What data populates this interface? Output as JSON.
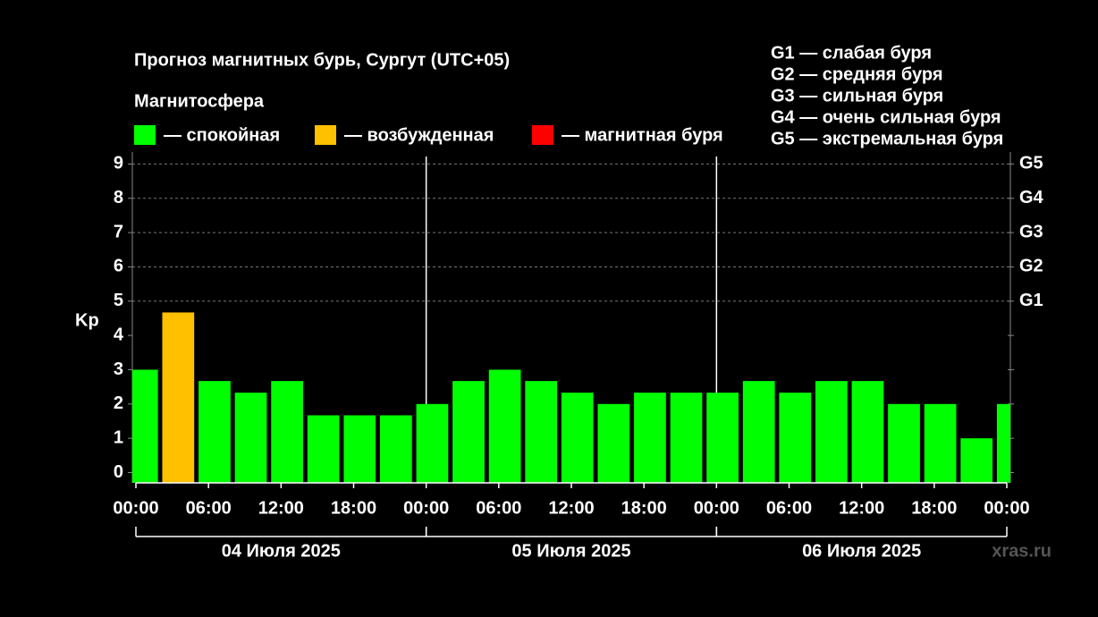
{
  "chart_data": {
    "type": "bar",
    "title": "Прогноз магнитных бурь, Сургут (UTC+05)",
    "legend_title": "Магнитосфера",
    "legend": [
      {
        "name": "— спокойная",
        "color": "#00ff00"
      },
      {
        "name": "— возбужденная",
        "color": "#ffc000"
      },
      {
        "name": "— магнитная буря",
        "color": "#ff0000"
      }
    ],
    "storm_legend": [
      "G1 — слабая буря",
      "G2 — средняя буря",
      "G3 — сильная буря",
      "G4 — очень сильная буря",
      "G5 — экстремальная буря"
    ],
    "ylabel": "Kp",
    "x": [
      0.5,
      3.5,
      6.5,
      9.5,
      12.5,
      15.5,
      18.5,
      21.5,
      24.5,
      27.5,
      30.5,
      33.5,
      36.5,
      39.5,
      42.5,
      45.5,
      48.5,
      51.5,
      54.5,
      57.5,
      60.5,
      63.5,
      66.5,
      69.5,
      72.5
    ],
    "values": [
      3,
      4.67,
      2.67,
      2.33,
      2.67,
      1.67,
      1.67,
      1.67,
      2,
      2.67,
      3,
      2.67,
      2.33,
      2,
      2.33,
      2.33,
      2.33,
      2.67,
      2.33,
      2.67,
      2.67,
      2,
      2,
      1,
      2
    ],
    "colors": [
      "#00ff00",
      "#ffc000",
      "#00ff00",
      "#00ff00",
      "#00ff00",
      "#00ff00",
      "#00ff00",
      "#00ff00",
      "#00ff00",
      "#00ff00",
      "#00ff00",
      "#00ff00",
      "#00ff00",
      "#00ff00",
      "#00ff00",
      "#00ff00",
      "#00ff00",
      "#00ff00",
      "#00ff00",
      "#00ff00",
      "#00ff00",
      "#00ff00",
      "#00ff00",
      "#00ff00",
      "#00ff00"
    ],
    "xlim": [
      0,
      72
    ],
    "xticks": [
      {
        "value": 0,
        "label": "00:00"
      },
      {
        "value": 6,
        "label": "06:00"
      },
      {
        "value": 12,
        "label": "12:00"
      },
      {
        "value": 18,
        "label": "18:00"
      },
      {
        "value": 24,
        "label": "00:00"
      },
      {
        "value": 30,
        "label": "06:00"
      },
      {
        "value": 36,
        "label": "12:00"
      },
      {
        "value": 42,
        "label": "18:00"
      },
      {
        "value": 48,
        "label": "00:00"
      },
      {
        "value": 54,
        "label": "06:00"
      },
      {
        "value": 60,
        "label": "12:00"
      },
      {
        "value": 66,
        "label": "18:00"
      },
      {
        "value": 72,
        "label": "00:00"
      }
    ],
    "days": [
      {
        "start": 0,
        "end": 24,
        "label": "04 Июля 2025"
      },
      {
        "start": 24,
        "end": 48,
        "label": "05 Июля 2025"
      },
      {
        "start": 48,
        "end": 72,
        "label": "06 Июля 2025"
      }
    ],
    "ylim": [
      -0.3,
      9.35
    ],
    "yticks": [
      0,
      1,
      2,
      3,
      4,
      5,
      6,
      7,
      8,
      9
    ],
    "y2ticks": [
      {
        "value": 5,
        "label": "G1"
      },
      {
        "value": 6,
        "label": "G2"
      },
      {
        "value": 7,
        "label": "G3"
      },
      {
        "value": 8,
        "label": "G4"
      },
      {
        "value": 9,
        "label": "G5"
      }
    ],
    "watermark": "xras.ru"
  }
}
